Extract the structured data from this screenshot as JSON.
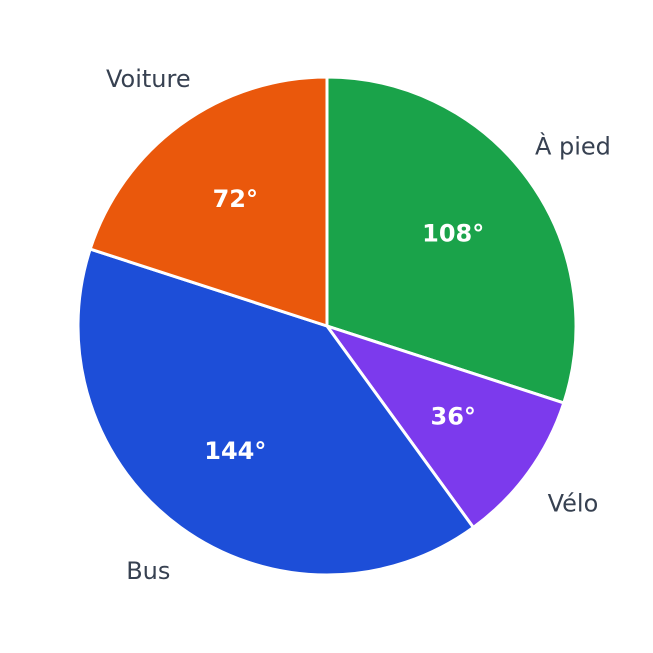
{
  "chart_data": {
    "type": "pie",
    "categories": [
      "À pied",
      "Vélo",
      "Bus",
      "Voiture"
    ],
    "values": [
      108,
      36,
      144,
      72
    ],
    "value_labels": [
      "108°",
      "36°",
      "144°",
      "72°"
    ],
    "colors": [
      "#1aa34a",
      "#7c3aed",
      "#1d4ed8",
      "#ea580c"
    ]
  }
}
